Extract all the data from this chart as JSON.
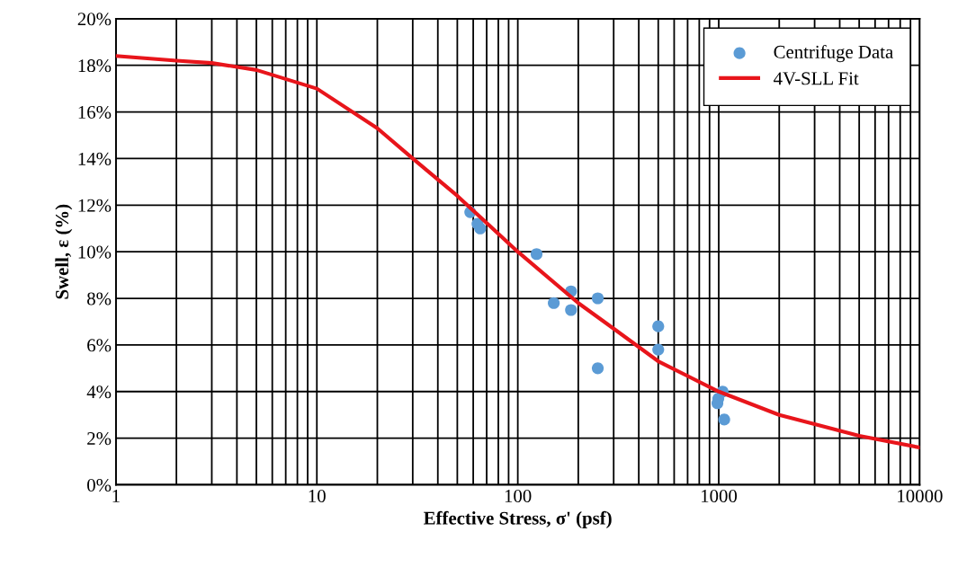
{
  "chart_data": {
    "type": "scatter",
    "xlabel": "Effective Stress, σ' (psf)",
    "ylabel": "Swell, ε (%)",
    "log": "x",
    "grid": true,
    "legend": "top right",
    "xlim": [
      1,
      10000
    ],
    "xticks": [
      1,
      10,
      100,
      1000,
      10000
    ],
    "ylim": [
      0,
      20
    ],
    "yticks": [
      {
        "value": 0,
        "label": "0%"
      },
      {
        "value": 2,
        "label": "2%"
      },
      {
        "value": 4,
        "label": "4%"
      },
      {
        "value": 6,
        "label": "6%"
      },
      {
        "value": 8,
        "label": "8%"
      },
      {
        "value": 10,
        "label": "10%"
      },
      {
        "value": 12,
        "label": "12%"
      },
      {
        "value": 14,
        "label": "14%"
      },
      {
        "value": 16,
        "label": "16%"
      },
      {
        "value": 18,
        "label": "18%"
      },
      {
        "value": 20,
        "label": "20%"
      }
    ],
    "series": [
      {
        "name": "Centrifuge Data",
        "marker": "circle",
        "color": "#5b9bd5",
        "x": [
          58,
          63,
          65,
          124,
          151,
          184,
          184,
          250,
          250,
          500,
          500,
          1045,
          995,
          985,
          1065
        ],
        "values": [
          11.7,
          11.2,
          11.0,
          9.9,
          7.8,
          8.3,
          7.5,
          8.0,
          5.0,
          6.8,
          5.8,
          4.0,
          3.7,
          3.5,
          2.8
        ]
      },
      {
        "name": "4V-SLL Fit",
        "type": "line",
        "marker": "none",
        "line_style": "solid",
        "color": "#e8151b",
        "x": [
          1,
          2,
          3,
          5,
          10,
          20,
          30,
          50,
          100,
          200,
          300,
          500,
          1000,
          2000,
          3000,
          5000,
          10000
        ],
        "values": [
          18.4,
          18.2,
          18.1,
          17.8,
          17.0,
          15.3,
          14.0,
          12.4,
          10.0,
          7.8,
          6.7,
          5.3,
          4.0,
          3.0,
          2.6,
          2.1,
          1.6
        ]
      }
    ]
  }
}
